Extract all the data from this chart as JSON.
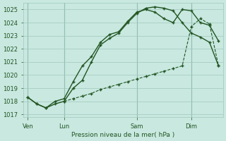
{
  "title": "Pression niveau de la mer( hPa )",
  "bg_color": "#c8e8e0",
  "grid_color": "#a0c8bc",
  "line_color": "#225522",
  "ylim": [
    1016.8,
    1025.5
  ],
  "yticks": [
    1017,
    1018,
    1019,
    1020,
    1021,
    1022,
    1023,
    1024,
    1025
  ],
  "xtick_labels": [
    "Ven",
    "Lun",
    "Sam",
    "Dim"
  ],
  "xtick_positions": [
    0,
    4,
    12,
    18
  ],
  "total_points": 22,
  "line1_x": [
    0,
    1,
    2,
    3,
    4,
    5,
    6,
    7,
    8,
    9,
    10,
    11,
    12,
    13,
    14,
    15,
    16,
    17,
    18,
    19,
    20,
    21
  ],
  "line1_y": [
    1018.3,
    1017.8,
    1017.5,
    1017.8,
    1018.0,
    1019.0,
    1019.6,
    1021.0,
    1022.3,
    1022.8,
    1023.2,
    1024.0,
    1024.7,
    1025.1,
    1025.2,
    1025.1,
    1024.9,
    1024.0,
    1023.2,
    1022.9,
    1022.5,
    1020.7
  ],
  "line2_x": [
    0,
    1,
    2,
    3,
    4,
    5,
    6,
    7,
    8,
    9,
    10,
    11,
    12,
    13,
    14,
    15,
    16,
    17,
    18,
    19,
    20,
    21
  ],
  "line2_y": [
    1018.3,
    1017.8,
    1017.5,
    1018.0,
    1018.2,
    1019.5,
    1020.7,
    1021.4,
    1022.5,
    1023.1,
    1023.3,
    1024.1,
    1024.8,
    1025.0,
    1024.8,
    1024.3,
    1024.0,
    1025.0,
    1024.9,
    1024.0,
    1023.8,
    1022.6
  ],
  "line3_x": [
    4,
    5,
    6,
    7,
    8,
    9,
    10,
    11,
    12,
    13,
    14,
    15,
    16,
    17,
    18,
    19,
    20,
    21
  ],
  "line3_y": [
    1018.0,
    1018.2,
    1018.4,
    1018.6,
    1018.9,
    1019.1,
    1019.3,
    1019.5,
    1019.7,
    1019.9,
    1020.1,
    1020.3,
    1020.5,
    1020.7,
    1023.7,
    1024.3,
    1023.9,
    1020.7
  ],
  "vline_positions": [
    0,
    4,
    12,
    18
  ]
}
